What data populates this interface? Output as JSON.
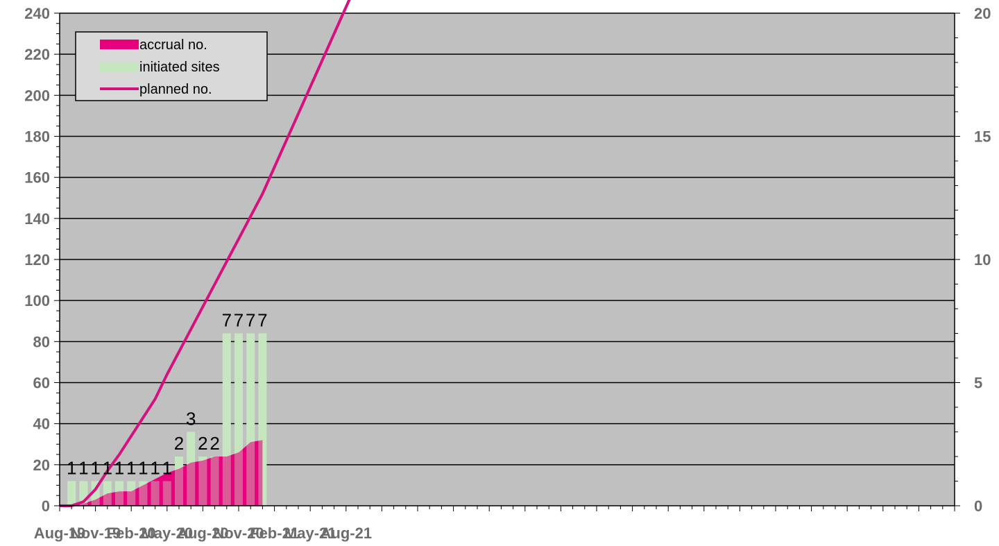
{
  "chart_data": {
    "type": "bar",
    "title": "",
    "xlabel": "",
    "ylabel": "",
    "x_tick_labels": [
      "Aug-19",
      "Nov-19",
      "Feb-20",
      "May-20",
      "Aug-20",
      "Nov-20",
      "Feb-21",
      "May-21",
      "Aug-21"
    ],
    "y_left": {
      "ylim": [
        0,
        240
      ],
      "ticks": [
        "0",
        "20",
        "40",
        "60",
        "80",
        "100",
        "120",
        "140",
        "160",
        "180",
        "200",
        "220",
        "240"
      ]
    },
    "y_right": {
      "ylim": [
        0,
        20
      ],
      "ticks": [
        "0",
        "5",
        "10",
        "15",
        "20"
      ]
    },
    "grid": true,
    "legend_position": "top-left",
    "legend": [
      {
        "label": "accrual no.",
        "kind": "area"
      },
      {
        "label": "initiated sites",
        "kind": "bar"
      },
      {
        "label": "planned no.",
        "kind": "line"
      }
    ],
    "series": [
      {
        "name": "accrual no.",
        "type": "area",
        "axis": "left",
        "color": "#e6007e",
        "x": [
          "Aug-19",
          "Sep-19",
          "Oct-19",
          "Nov-19",
          "Dec-19",
          "Jan-20",
          "Feb-20",
          "Mar-20",
          "Apr-20",
          "May-20",
          "Jun-20",
          "Jul-20",
          "Aug-20",
          "Sep-20",
          "Oct-20",
          "Nov-20",
          "Dec-20",
          "Jan-21"
        ],
        "values": [
          0,
          0,
          1,
          3,
          6,
          7,
          7,
          10,
          13,
          16,
          18,
          21,
          22,
          24,
          24,
          26,
          31,
          32
        ]
      },
      {
        "name": "initiated sites",
        "type": "bar",
        "axis": "right",
        "color": "#c6e6c0",
        "x": [
          "Sep-19",
          "Oct-19",
          "Nov-19",
          "Dec-19",
          "Jan-20",
          "Feb-20",
          "Mar-20",
          "Apr-20",
          "May-20",
          "Jun-20",
          "Jul-20",
          "Aug-20",
          "Sep-20",
          "Oct-20",
          "Nov-20",
          "Dec-20",
          "Jan-21"
        ],
        "values": [
          1,
          1,
          1,
          1,
          1,
          1,
          1,
          1,
          1,
          2,
          3,
          2,
          2,
          7,
          7,
          7,
          7
        ],
        "data_labels": [
          "1",
          "1",
          "1",
          "1",
          "1",
          "1",
          "1",
          "1",
          "1",
          "2",
          "3",
          "2",
          "2",
          "7",
          "7",
          "7",
          "7"
        ]
      },
      {
        "name": "planned no.",
        "type": "line",
        "axis": "left",
        "color": "#d4127f",
        "x": [
          "Aug-19",
          "Sep-19",
          "Oct-19",
          "Nov-19",
          "Dec-19",
          "Jan-20",
          "Feb-20",
          "Mar-20",
          "Apr-20",
          "May-20",
          "Jun-20",
          "Jul-20",
          "Aug-20",
          "Sep-20",
          "Oct-20",
          "Nov-20",
          "Dec-20",
          "Jan-21",
          "Feb-21",
          "Mar-21",
          "Apr-21",
          "May-21",
          "Jun-21",
          "Jul-21",
          "Aug-21",
          "Sep-21"
        ],
        "values": [
          0,
          0,
          2,
          8,
          17,
          25,
          34,
          43,
          52,
          64,
          75,
          86,
          97,
          108,
          119,
          130,
          141,
          152,
          165,
          178,
          191,
          204,
          217,
          230,
          243,
          256
        ]
      }
    ],
    "colors": {
      "plot_background": "#c0c0c0",
      "grid": "#000000",
      "axis_text": "#6d6d6d"
    }
  }
}
